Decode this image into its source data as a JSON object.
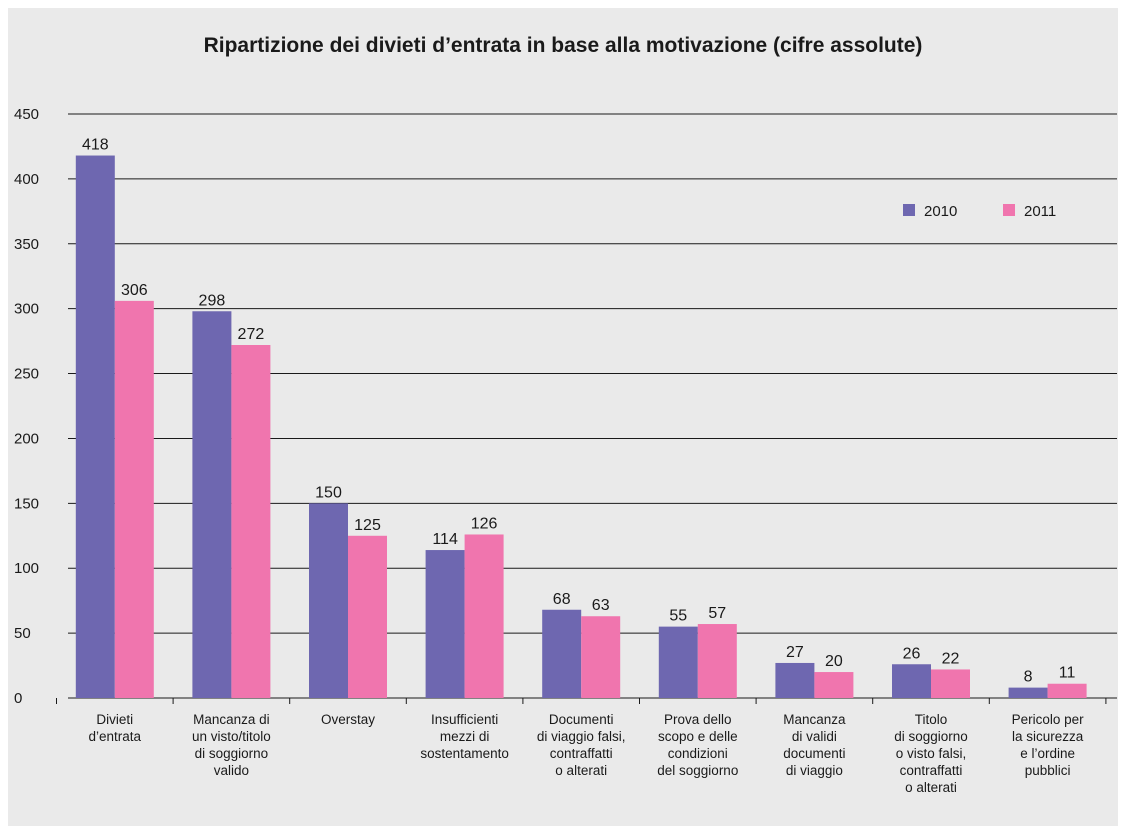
{
  "chart_data": {
    "type": "bar",
    "title": "Ripartizione dei divieti d’entrata in base alla motivazione (cifre assolute)",
    "xlabel": "",
    "ylabel": "",
    "ylim": [
      0,
      450
    ],
    "yticks": [
      0,
      50,
      100,
      150,
      200,
      250,
      300,
      350,
      400,
      450
    ],
    "grid": true,
    "legend_position": "top-right",
    "categories": [
      [
        "Divieti",
        "d’entrata"
      ],
      [
        "Mancanza di",
        "un visto/titolo",
        "di soggiorno",
        "valido"
      ],
      [
        "Overstay"
      ],
      [
        "Insufficienti",
        "mezzi di",
        "sostentamento"
      ],
      [
        "Documenti",
        "di viaggio falsi,",
        "contraffatti",
        "o alterati"
      ],
      [
        "Prova dello",
        "scopo e delle",
        "condizioni",
        "del soggiorno"
      ],
      [
        "Mancanza",
        "di validi",
        "documenti",
        "di viaggio"
      ],
      [
        "Titolo",
        "di soggiorno",
        "o visto falsi,",
        "contraffatti",
        "o alterati"
      ],
      [
        "Pericolo per",
        "la sicurezza",
        "e l’ordine",
        "pubblici"
      ]
    ],
    "series": [
      {
        "name": "2010",
        "color": "#6e67b0",
        "values": [
          418,
          298,
          150,
          114,
          68,
          55,
          27,
          26,
          8
        ]
      },
      {
        "name": "2011",
        "color": "#f075ae",
        "values": [
          306,
          272,
          125,
          126,
          63,
          57,
          20,
          22,
          11
        ]
      }
    ]
  }
}
